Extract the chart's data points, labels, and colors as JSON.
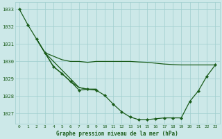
{
  "title": "Graphe pression niveau de la mer (hPa)",
  "bg_color": "#cce8e8",
  "grid_color": "#9fcece",
  "line_color": "#1a5c1a",
  "xlim": [
    -0.5,
    23.5
  ],
  "ylim": [
    1026.4,
    1033.4
  ],
  "yticks": [
    1027,
    1028,
    1029,
    1030,
    1031,
    1032,
    1033
  ],
  "xticks": [
    0,
    1,
    2,
    3,
    4,
    5,
    6,
    7,
    8,
    9,
    10,
    11,
    12,
    13,
    14,
    15,
    16,
    17,
    18,
    19,
    20,
    21,
    22,
    23
  ],
  "line1_x": [
    0,
    1,
    2,
    3,
    4,
    5,
    6,
    7,
    8,
    9,
    10,
    11,
    12,
    13,
    14,
    15,
    16,
    17,
    18,
    19,
    20,
    21,
    22,
    23
  ],
  "line1_y": [
    1033.0,
    1032.1,
    1031.3,
    1030.5,
    1029.7,
    1029.3,
    1028.85,
    1028.35,
    1028.4,
    1028.35,
    1028.05,
    1027.55,
    1027.1,
    1026.8,
    1026.65,
    1026.65,
    1026.7,
    1026.75,
    1026.75,
    1026.75,
    1027.7,
    1028.3,
    1029.15,
    1029.8
  ],
  "line2_x": [
    2,
    3,
    4,
    5,
    6,
    7,
    8,
    9,
    10,
    11,
    12,
    13,
    14,
    15,
    16,
    17,
    18,
    19,
    20,
    21,
    22,
    23
  ],
  "line2_y": [
    1031.3,
    1030.5,
    1030.3,
    1030.1,
    1030.0,
    1030.0,
    1029.95,
    1030.0,
    1030.0,
    1030.0,
    1030.0,
    1030.0,
    1029.97,
    1029.95,
    1029.9,
    1029.85,
    1029.82,
    1029.8,
    1029.8,
    1029.8,
    1029.8,
    1029.8
  ],
  "line3_x": [
    2,
    3,
    4,
    5,
    6,
    7,
    8,
    9
  ],
  "line3_y": [
    1031.3,
    1030.5,
    1029.7,
    1029.3,
    1028.85,
    1028.5,
    1028.4,
    1028.4
  ],
  "line4_x": [
    2,
    3,
    4,
    5,
    6,
    7,
    8,
    9
  ],
  "line4_y": [
    1031.3,
    1030.5,
    1030.0,
    1029.5,
    1029.0,
    1028.5,
    1028.4,
    1028.4
  ]
}
